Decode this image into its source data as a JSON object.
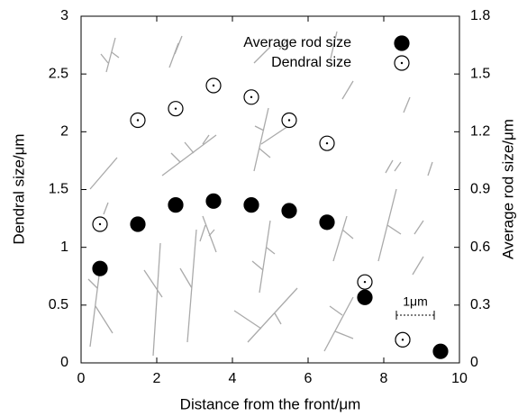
{
  "chart_data": {
    "type": "scatter",
    "xlabel": "Distance from the front/μm",
    "ylabel": "Dendral size/μm",
    "y2label": "Average rod size/μm",
    "xlim": [
      0,
      10
    ],
    "xticks": [
      0,
      2,
      4,
      6,
      8,
      10
    ],
    "ylim": [
      0,
      3
    ],
    "yticks": [
      0,
      0.5,
      1,
      1.5,
      2,
      2.5,
      3
    ],
    "y2lim": [
      0,
      1.8
    ],
    "y2ticks": [
      0,
      0.3,
      0.6,
      0.9,
      1.2,
      1.5,
      1.8
    ],
    "legend": "upper right",
    "scale_label": "1μm",
    "series": [
      {
        "name": "Average rod size",
        "color": "#000000",
        "filled": true,
        "axis": "y2",
        "x": [
          0.5,
          1.5,
          2.5,
          3.5,
          4.5,
          5.5,
          6.5,
          7.5,
          8.5,
          9.5
        ],
        "values": [
          0.49,
          0.72,
          0.82,
          0.84,
          0.82,
          0.79,
          0.73,
          0.34,
          0.12,
          0.06
        ]
      },
      {
        "name": "Dendral size",
        "color": "#000000",
        "filled": false,
        "axis": "y",
        "x": [
          0.5,
          1.5,
          2.5,
          3.5,
          4.5,
          5.5,
          6.5,
          7.5,
          8.5
        ],
        "values": [
          1.2,
          2.1,
          2.2,
          2.4,
          2.3,
          2.1,
          1.9,
          0.7,
          0.2
        ]
      }
    ]
  }
}
